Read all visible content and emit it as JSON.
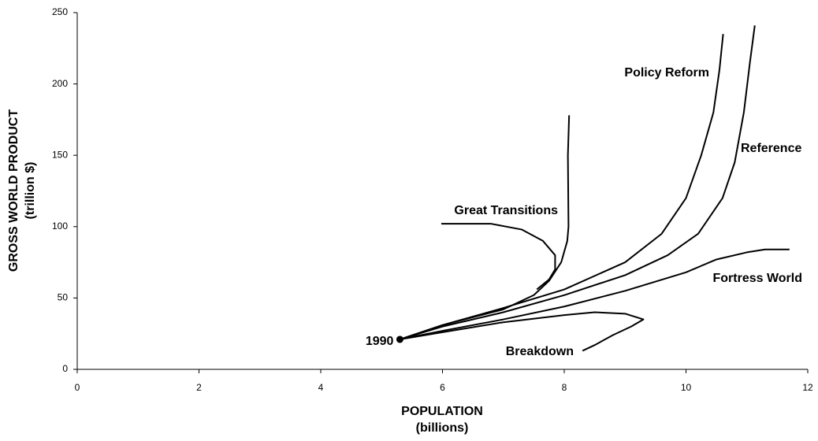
{
  "chart_data": {
    "type": "line",
    "xlabel": [
      "POPULATION",
      "(billions)"
    ],
    "ylabel": [
      "GROSS WORLD PRODUCT",
      "(trillion $)"
    ],
    "xlim": [
      0,
      12
    ],
    "xticks": [
      0,
      2,
      4,
      6,
      8,
      10,
      12
    ],
    "ylim": [
      0,
      250
    ],
    "yticks": [
      0,
      50,
      100,
      150,
      200,
      250
    ],
    "start_label": "1990",
    "series": [
      {
        "name": "Reference",
        "color": "#000000",
        "x": [
          5.3,
          6,
          7,
          8,
          9,
          9.7,
          10.2,
          10.6,
          10.8,
          10.95,
          11.05,
          11.13
        ],
        "values": [
          21,
          30,
          40,
          52,
          66,
          80,
          95,
          120,
          145,
          180,
          215,
          241
        ]
      },
      {
        "name": "Policy Reform",
        "color": "#000000",
        "x": [
          5.3,
          6,
          7,
          8,
          9,
          9.6,
          10,
          10.25,
          10.45,
          10.55,
          10.61
        ],
        "values": [
          21,
          31,
          43,
          56,
          75,
          95,
          120,
          150,
          180,
          210,
          235
        ]
      },
      {
        "name": "Great Transitions",
        "color": "#000000",
        "x": [
          5.3,
          6,
          7,
          7.5,
          7.75,
          7.95,
          8.05,
          8.07,
          8.06,
          8.08,
          null,
          5.98,
          6.8,
          7.3,
          7.65,
          7.85,
          7.85,
          7.75,
          7.55
        ],
        "values": [
          21,
          31,
          42,
          52,
          62,
          75,
          90,
          100,
          150,
          178,
          null,
          102,
          102,
          98,
          90,
          80,
          70,
          63,
          56
        ]
      },
      {
        "name": "Fortress World",
        "color": "#000000",
        "x": [
          5.3,
          6,
          7,
          8,
          9,
          10,
          10.5,
          11,
          11.3,
          11.7
        ],
        "values": [
          21,
          27,
          35,
          44,
          55,
          68,
          77,
          82,
          84,
          84
        ]
      },
      {
        "name": "Breakdown",
        "color": "#000000",
        "x": [
          5.3,
          6,
          7,
          8,
          8.5,
          9,
          9.3,
          9.1,
          8.8,
          8.5,
          8.3
        ],
        "values": [
          21,
          26,
          33,
          38,
          40,
          39,
          35,
          30,
          24,
          17,
          13
        ]
      }
    ]
  }
}
